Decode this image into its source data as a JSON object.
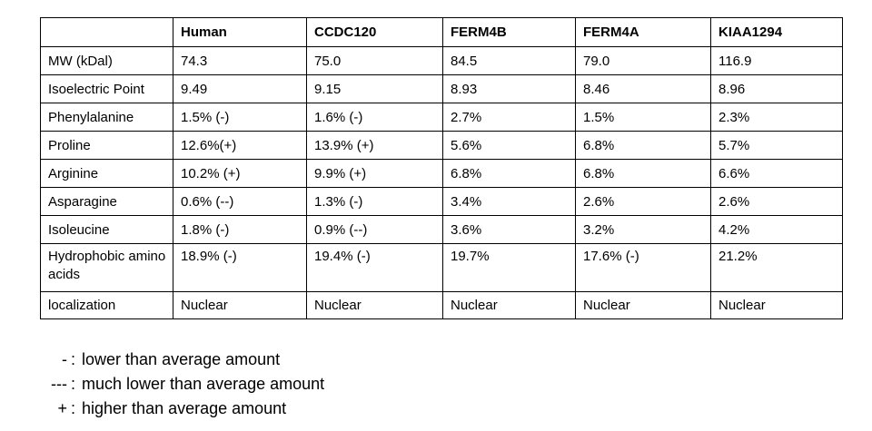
{
  "table": {
    "columns": [
      "",
      "Human",
      "CCDC120",
      "FERM4B",
      "FERM4A",
      "KIAA1294"
    ],
    "rows": [
      {
        "label": "MW (kDal)",
        "values": [
          "74.3",
          "75.0",
          "84.5",
          "79.0",
          "116.9"
        ]
      },
      {
        "label": "Isoelectric Point",
        "values": [
          "9.49",
          "9.15",
          "8.93",
          "8.46",
          "8.96"
        ]
      },
      {
        "label": "Phenylalanine",
        "values": [
          "1.5% (-)",
          "1.6% (-)",
          "2.7%",
          "1.5%",
          "2.3%"
        ]
      },
      {
        "label": "Proline",
        "values": [
          "12.6%(+)",
          "13.9% (+)",
          "5.6%",
          "6.8%",
          "5.7%"
        ]
      },
      {
        "label": "Arginine",
        "values": [
          "10.2% (+)",
          "9.9% (+)",
          "6.8%",
          "6.8%",
          "6.6%"
        ]
      },
      {
        "label": "Asparagine",
        "values": [
          "0.6% (--)",
          "1.3% (-)",
          "3.4%",
          "2.6%",
          "2.6%"
        ]
      },
      {
        "label": "Isoleucine",
        "values": [
          "1.8% (-)",
          "0.9% (--)",
          "3.6%",
          "3.2%",
          "4.2%"
        ]
      },
      {
        "label": "Hydrophobic amino acids",
        "values": [
          "18.9% (-)",
          "19.4% (-)",
          "19.7%",
          "17.6% (-)",
          "21.2%"
        ]
      },
      {
        "label": "localization",
        "values": [
          "Nuclear",
          "Nuclear",
          "Nuclear",
          "Nuclear",
          "Nuclear"
        ]
      }
    ]
  },
  "legend": {
    "separator": ":",
    "entries": [
      {
        "symbol": "-",
        "text": "lower than average amount"
      },
      {
        "symbol": "---",
        "text": "much lower than average amount"
      },
      {
        "symbol": "+",
        "text": "higher than average amount"
      }
    ]
  },
  "colors": {
    "background": "#ffffff",
    "border": "#000000",
    "text": "#000000"
  }
}
